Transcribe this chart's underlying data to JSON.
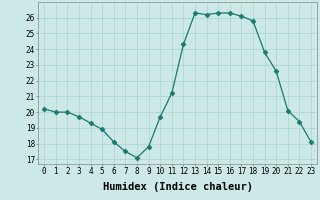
{
  "x": [
    0,
    1,
    2,
    3,
    4,
    5,
    6,
    7,
    8,
    9,
    10,
    11,
    12,
    13,
    14,
    15,
    16,
    17,
    18,
    19,
    20,
    21,
    22,
    23
  ],
  "y": [
    20.2,
    20.0,
    20.0,
    19.7,
    19.3,
    18.9,
    18.1,
    17.5,
    17.1,
    17.8,
    19.7,
    21.2,
    24.3,
    26.3,
    26.2,
    26.3,
    26.3,
    26.1,
    25.8,
    23.8,
    22.6,
    20.1,
    19.4,
    18.1
  ],
  "line_color": "#1a7a6e",
  "marker": "D",
  "marker_size": 2.5,
  "bg_color": "#cce9e7",
  "grid_color": "#aad4d1",
  "xlabel": "Humidex (Indice chaleur)",
  "xlim": [
    -0.5,
    23.5
  ],
  "ylim": [
    16.7,
    27.0
  ],
  "yticks": [
    17,
    18,
    19,
    20,
    21,
    22,
    23,
    24,
    25,
    26
  ],
  "xticks": [
    0,
    1,
    2,
    3,
    4,
    5,
    6,
    7,
    8,
    9,
    10,
    11,
    12,
    13,
    14,
    15,
    16,
    17,
    18,
    19,
    20,
    21,
    22,
    23
  ],
  "tick_fontsize": 5.5,
  "xlabel_fontsize": 7.5
}
